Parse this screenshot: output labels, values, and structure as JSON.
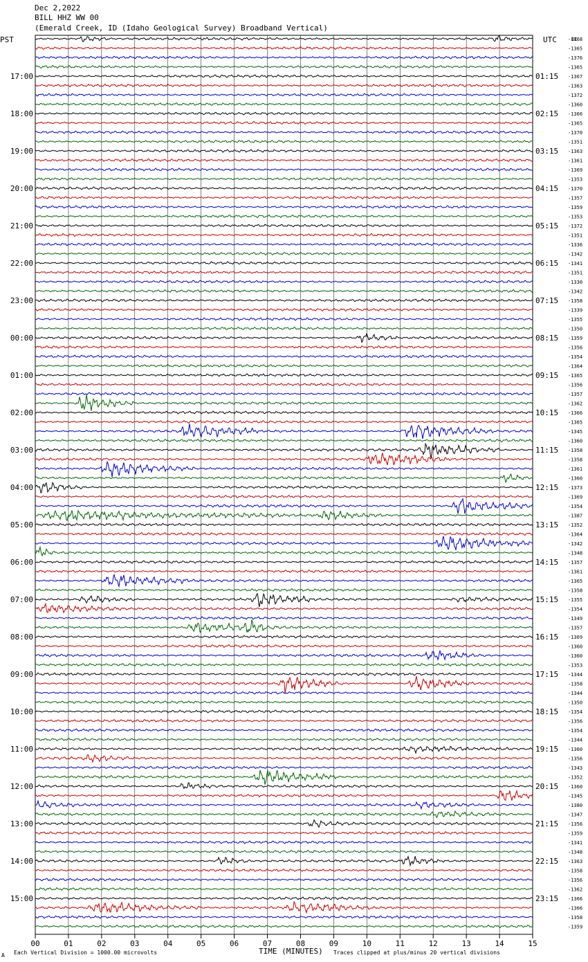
{
  "header": {
    "date": "Dec 2,2022",
    "station": "BILL HHZ WW 00",
    "location": "(Emerald Creek, ID (Idaho Geological Survey) Broadband Vertical)"
  },
  "chart_data": {
    "type": "line",
    "left_timezone": "PST",
    "right_timezone": "UTC",
    "dc_label": "DC",
    "xlabel": "TIME (MINUTES)",
    "x_ticks": [
      "00",
      "01",
      "02",
      "03",
      "04",
      "05",
      "06",
      "07",
      "08",
      "09",
      "10",
      "11",
      "12",
      "13",
      "14",
      "15"
    ],
    "xlim": [
      0,
      15
    ],
    "left_hour_labels": [
      "17:00",
      "18:00",
      "19:00",
      "20:00",
      "21:00",
      "22:00",
      "23:00",
      "00:00",
      "01:00",
      "02:00",
      "03:00",
      "04:00",
      "05:00",
      "06:00",
      "07:00",
      "08:00",
      "09:00",
      "10:00",
      "11:00",
      "12:00",
      "13:00",
      "14:00",
      "15:00"
    ],
    "right_hour_labels": [
      "01:15",
      "02:15",
      "03:15",
      "04:15",
      "05:15",
      "06:15",
      "07:15",
      "08:15",
      "09:15",
      "10:15",
      "11:15",
      "12:15",
      "13:15",
      "14:15",
      "15:15",
      "16:15",
      "17:15",
      "18:15",
      "19:15",
      "20:15",
      "21:15",
      "22:15",
      "23:15"
    ],
    "trace_colors": [
      "#000000",
      "#cc0000",
      "#0000cc",
      "#006600"
    ],
    "trace_count": 96,
    "dc_offsets": [
      -1368,
      -1365,
      -1376,
      -1365,
      -1367,
      -1363,
      -1372,
      -1360,
      -1366,
      -1365,
      -1370,
      -1351,
      -1363,
      -1361,
      -1369,
      -1353,
      -1370,
      -1357,
      -1359,
      -1353,
      -1372,
      -1351,
      -1336,
      -1342,
      -1341,
      -1351,
      -1330,
      -1342,
      -1358,
      -1339,
      -1355,
      -1350,
      -1359,
      -1356,
      -1354,
      -1364,
      -1365,
      -1356,
      -1357,
      -1362,
      -1366,
      -1365,
      -1345,
      -1360,
      -1358,
      -1358,
      -1361,
      -1360,
      -1373,
      -1369,
      -1354,
      -1387,
      -1352,
      -1364,
      -1342,
      -1348,
      -1357,
      -1361,
      -1365,
      -1358,
      -1355,
      -1354,
      -1349,
      -1357,
      -1369,
      -1360,
      -1360,
      -1353,
      -1344,
      -1358,
      -1344,
      -1350,
      -1354,
      -1356,
      -1354,
      -1344,
      -1360,
      -1356,
      -1343,
      -1352,
      -1360,
      -1345,
      -1380,
      -1347,
      -1356,
      -1359,
      -1341,
      -1348,
      -1363,
      -1358,
      -1356,
      -1362,
      -1366,
      -1366,
      -1358,
      -1359
    ],
    "events": [
      {
        "trace": 0,
        "start_min": 1.3,
        "end_min": 2.2,
        "amplitude": 2.0
      },
      {
        "trace": 0,
        "start_min": 13.8,
        "end_min": 14.4,
        "amplitude": 2.5
      },
      {
        "trace": 32,
        "start_min": 9.7,
        "end_min": 10.9,
        "amplitude": 3.0
      },
      {
        "trace": 39,
        "start_min": 1.2,
        "end_min": 3.0,
        "amplitude": 5.0
      },
      {
        "trace": 42,
        "start_min": 4.3,
        "end_min": 6.7,
        "amplitude": 4.5
      },
      {
        "trace": 42,
        "start_min": 11.0,
        "end_min": 13.8,
        "amplitude": 5.0
      },
      {
        "trace": 44,
        "start_min": 11.5,
        "end_min": 14.0,
        "amplitude": 4.5
      },
      {
        "trace": 45,
        "start_min": 9.9,
        "end_min": 12.5,
        "amplitude": 4.0
      },
      {
        "trace": 46,
        "start_min": 1.9,
        "end_min": 4.8,
        "amplitude": 4.5
      },
      {
        "trace": 47,
        "start_min": 14.0,
        "end_min": 15.0,
        "amplitude": 2.5
      },
      {
        "trace": 48,
        "start_min": 0.0,
        "end_min": 1.4,
        "amplitude": 3.5
      },
      {
        "trace": 50,
        "start_min": 12.5,
        "end_min": 15.0,
        "amplitude": 4.5
      },
      {
        "trace": 51,
        "start_min": 0.0,
        "end_min": 7.4,
        "amplitude": 3.0
      },
      {
        "trace": 51,
        "start_min": 8.5,
        "end_min": 10.5,
        "amplitude": 2.5
      },
      {
        "trace": 54,
        "start_min": 12.0,
        "end_min": 15.0,
        "amplitude": 4.5
      },
      {
        "trace": 55,
        "start_min": 0.0,
        "end_min": 0.6,
        "amplitude": 3.0
      },
      {
        "trace": 58,
        "start_min": 2.0,
        "end_min": 4.6,
        "amplitude": 4.0
      },
      {
        "trace": 60,
        "start_min": 1.3,
        "end_min": 3.0,
        "amplitude": 2.5
      },
      {
        "trace": 60,
        "start_min": 6.5,
        "end_min": 8.3,
        "amplitude": 4.5
      },
      {
        "trace": 60,
        "start_min": 12.5,
        "end_min": 15.0,
        "amplitude": 1.5
      },
      {
        "trace": 61,
        "start_min": 0.0,
        "end_min": 2.6,
        "amplitude": 3.0
      },
      {
        "trace": 63,
        "start_min": 4.5,
        "end_min": 7.5,
        "amplitude": 3.0
      },
      {
        "trace": 63,
        "start_min": 6.3,
        "end_min": 7.0,
        "amplitude": 4.5
      },
      {
        "trace": 66,
        "start_min": 11.7,
        "end_min": 13.6,
        "amplitude": 3.0
      },
      {
        "trace": 69,
        "start_min": 7.3,
        "end_min": 9.3,
        "amplitude": 5.0
      },
      {
        "trace": 69,
        "start_min": 11.2,
        "end_min": 13.2,
        "amplitude": 4.5
      },
      {
        "trace": 76,
        "start_min": 11.0,
        "end_min": 15.0,
        "amplitude": 1.5
      },
      {
        "trace": 77,
        "start_min": 1.4,
        "end_min": 2.8,
        "amplitude": 2.0
      },
      {
        "trace": 79,
        "start_min": 6.5,
        "end_min": 9.2,
        "amplitude": 4.5
      },
      {
        "trace": 80,
        "start_min": 4.3,
        "end_min": 5.7,
        "amplitude": 2.0
      },
      {
        "trace": 81,
        "start_min": 13.9,
        "end_min": 15.0,
        "amplitude": 5.0
      },
      {
        "trace": 82,
        "start_min": 0.0,
        "end_min": 1.2,
        "amplitude": 2.0
      },
      {
        "trace": 82,
        "start_min": 11.4,
        "end_min": 13.3,
        "amplitude": 1.5
      },
      {
        "trace": 83,
        "start_min": 11.8,
        "end_min": 14.5,
        "amplitude": 1.5
      },
      {
        "trace": 84,
        "start_min": 8.2,
        "end_min": 9.6,
        "amplitude": 2.0
      },
      {
        "trace": 88,
        "start_min": 5.4,
        "end_min": 6.5,
        "amplitude": 2.5
      },
      {
        "trace": 88,
        "start_min": 11.0,
        "end_min": 12.4,
        "amplitude": 2.5
      },
      {
        "trace": 93,
        "start_min": 1.5,
        "end_min": 5.0,
        "amplitude": 3.5
      },
      {
        "trace": 93,
        "start_min": 7.5,
        "end_min": 10.2,
        "amplitude": 3.0
      }
    ]
  },
  "footer": {
    "scale_note": "Each Vertical Division = 1000.00 microvolts",
    "clip_note": "Traces clipped at plus/minus 20 vertical divisions",
    "corner_mark": "A"
  }
}
